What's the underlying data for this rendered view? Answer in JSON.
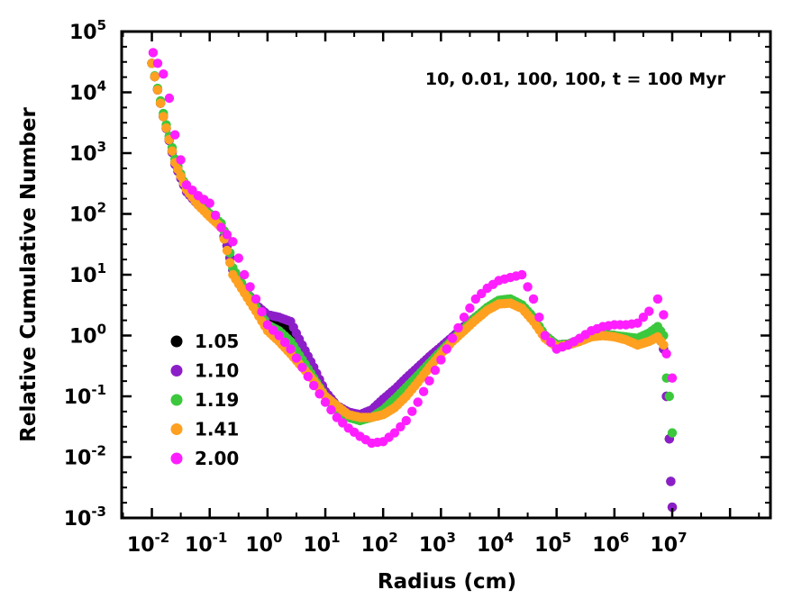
{
  "chart_data": {
    "type": "scatter",
    "title": "",
    "annotation": "10, 0.01, 100, 100, t = 100 Myr",
    "xlabel": "Radius (cm)",
    "ylabel": "Relative Cumulative Number",
    "xscale": "log",
    "yscale": "log",
    "xlim": [
      0.003,
      500000000
    ],
    "ylim": [
      0.001,
      100000
    ],
    "x_ticks": [
      {
        "base": "10",
        "exp": "-2",
        "value": 0.01
      },
      {
        "base": "10",
        "exp": "-1",
        "value": 0.1
      },
      {
        "base": "10",
        "exp": "0",
        "value": 1
      },
      {
        "base": "10",
        "exp": "1",
        "value": 10
      },
      {
        "base": "10",
        "exp": "2",
        "value": 100
      },
      {
        "base": "10",
        "exp": "3",
        "value": 1000
      },
      {
        "base": "10",
        "exp": "4",
        "value": 10000
      },
      {
        "base": "10",
        "exp": "5",
        "value": 100000
      },
      {
        "base": "10",
        "exp": "6",
        "value": 1000000
      },
      {
        "base": "10",
        "exp": "7",
        "value": 10000000
      }
    ],
    "y_ticks": [
      {
        "base": "10",
        "exp": "-3",
        "value": 0.001
      },
      {
        "base": "10",
        "exp": "-2",
        "value": 0.01
      },
      {
        "base": "10",
        "exp": "-1",
        "value": 0.1
      },
      {
        "base": "10",
        "exp": "0",
        "value": 1
      },
      {
        "base": "10",
        "exp": "1",
        "value": 10
      },
      {
        "base": "10",
        "exp": "2",
        "value": 100
      },
      {
        "base": "10",
        "exp": "3",
        "value": 1000
      },
      {
        "base": "10",
        "exp": "4",
        "value": 10000
      },
      {
        "base": "10",
        "exp": "5",
        "value": 100000
      }
    ],
    "legend_position": "lower-left",
    "series": [
      {
        "name": "1.05",
        "color": "#000000",
        "points": [
          [
            0.01,
            30000
          ],
          [
            0.0158,
            4000
          ],
          [
            0.0251,
            700
          ],
          [
            0.0398,
            250
          ],
          [
            0.0631,
            150
          ],
          [
            0.1,
            100
          ],
          [
            0.158,
            60
          ],
          [
            0.2,
            30
          ],
          [
            0.251,
            12
          ],
          [
            0.398,
            6
          ],
          [
            0.631,
            3
          ],
          [
            1,
            1.8
          ],
          [
            1.58,
            1.6
          ],
          [
            2.51,
            1.1
          ],
          [
            3.98,
            0.5
          ],
          [
            6.31,
            0.25
          ],
          [
            10,
            0.12
          ],
          [
            15.8,
            0.07
          ],
          [
            25.1,
            0.055
          ],
          [
            39.8,
            0.045
          ],
          [
            63.1,
            0.055
          ],
          [
            100,
            0.08
          ],
          [
            158,
            0.11
          ],
          [
            251,
            0.17
          ],
          [
            398,
            0.27
          ],
          [
            631,
            0.4
          ],
          [
            1000,
            0.6
          ],
          [
            1580,
            0.9
          ],
          [
            2510,
            1.4
          ],
          [
            3980,
            2
          ],
          [
            6310,
            2.8
          ],
          [
            10000,
            3.5
          ],
          [
            15800,
            3.7
          ],
          [
            25100,
            3
          ],
          [
            39800,
            1.8
          ],
          [
            63100,
            1
          ],
          [
            100000,
            0.7
          ],
          [
            158000,
            0.72
          ],
          [
            251000,
            0.85
          ],
          [
            398000,
            1
          ],
          [
            631000,
            1.05
          ],
          [
            1000000,
            1
          ],
          [
            1580000,
            0.9
          ],
          [
            2510000,
            0.85
          ],
          [
            3980000,
            1
          ],
          [
            5620000,
            1.1
          ],
          [
            7080000,
            0.6
          ],
          [
            7940000,
            0.1
          ],
          [
            8910000,
            0.02
          ],
          [
            9440000,
            0.004
          ],
          [
            10000000,
            0.0015
          ]
        ]
      },
      {
        "name": "1.10",
        "color": "#8c1ec8",
        "points": [
          [
            0.01,
            30000
          ],
          [
            0.0158,
            4000
          ],
          [
            0.0251,
            650
          ],
          [
            0.0398,
            230
          ],
          [
            0.0631,
            140
          ],
          [
            0.1,
            100
          ],
          [
            0.158,
            60
          ],
          [
            0.2,
            30
          ],
          [
            0.251,
            12
          ],
          [
            0.398,
            6
          ],
          [
            0.631,
            3.2
          ],
          [
            1,
            2.2
          ],
          [
            1.58,
            2
          ],
          [
            2.51,
            1.7
          ],
          [
            3.98,
            0.7
          ],
          [
            6.31,
            0.3
          ],
          [
            10,
            0.12
          ],
          [
            15.8,
            0.07
          ],
          [
            25.1,
            0.055
          ],
          [
            39.8,
            0.05
          ],
          [
            63.1,
            0.06
          ],
          [
            100,
            0.09
          ],
          [
            158,
            0.13
          ],
          [
            251,
            0.2
          ],
          [
            398,
            0.3
          ],
          [
            631,
            0.45
          ],
          [
            1000,
            0.65
          ],
          [
            1580,
            0.95
          ],
          [
            2510,
            1.4
          ],
          [
            3980,
            2
          ],
          [
            6310,
            2.8
          ],
          [
            10000,
            3.5
          ],
          [
            15800,
            3.6
          ],
          [
            25100,
            3
          ],
          [
            39800,
            1.8
          ],
          [
            63100,
            1
          ],
          [
            100000,
            0.7
          ],
          [
            158000,
            0.72
          ],
          [
            251000,
            0.85
          ],
          [
            398000,
            1
          ],
          [
            631000,
            1.05
          ],
          [
            1000000,
            1
          ],
          [
            1580000,
            0.9
          ],
          [
            2510000,
            0.85
          ],
          [
            3980000,
            1
          ],
          [
            5620000,
            1.2
          ],
          [
            7080000,
            0.6
          ],
          [
            7940000,
            0.1
          ],
          [
            8910000,
            0.02
          ],
          [
            9440000,
            0.004
          ],
          [
            10000000,
            0.0015
          ]
        ]
      },
      {
        "name": "1.19",
        "color": "#3cc83c",
        "points": [
          [
            0.01,
            30000
          ],
          [
            0.0158,
            4500
          ],
          [
            0.0251,
            800
          ],
          [
            0.0398,
            260
          ],
          [
            0.0631,
            150
          ],
          [
            0.1,
            100
          ],
          [
            0.158,
            70
          ],
          [
            0.2,
            40
          ],
          [
            0.251,
            13
          ],
          [
            0.398,
            6
          ],
          [
            0.631,
            3
          ],
          [
            1,
            1.5
          ],
          [
            1.58,
            1.2
          ],
          [
            2.51,
            0.8
          ],
          [
            3.98,
            0.4
          ],
          [
            6.31,
            0.2
          ],
          [
            10,
            0.1
          ],
          [
            15.8,
            0.06
          ],
          [
            25.1,
            0.045
          ],
          [
            39.8,
            0.04
          ],
          [
            63.1,
            0.045
          ],
          [
            100,
            0.06
          ],
          [
            158,
            0.09
          ],
          [
            251,
            0.14
          ],
          [
            398,
            0.22
          ],
          [
            631,
            0.35
          ],
          [
            1000,
            0.55
          ],
          [
            1580,
            0.85
          ],
          [
            2510,
            1.3
          ],
          [
            3980,
            2
          ],
          [
            6310,
            2.9
          ],
          [
            10000,
            3.8
          ],
          [
            15800,
            4
          ],
          [
            25100,
            3.2
          ],
          [
            39800,
            2
          ],
          [
            63100,
            1
          ],
          [
            100000,
            0.7
          ],
          [
            158000,
            0.72
          ],
          [
            251000,
            0.85
          ],
          [
            398000,
            1
          ],
          [
            631000,
            1.05
          ],
          [
            1000000,
            1
          ],
          [
            1580000,
            0.95
          ],
          [
            2510000,
            0.9
          ],
          [
            3980000,
            1.1
          ],
          [
            5620000,
            1.4
          ],
          [
            7080000,
            1
          ],
          [
            7940000,
            0.2
          ],
          [
            8910000,
            0.1
          ],
          [
            10000000,
            0.025
          ]
        ]
      },
      {
        "name": "1.41",
        "color": "#ffa020",
        "points": [
          [
            0.01,
            30000
          ],
          [
            0.0158,
            4000
          ],
          [
            0.0251,
            700
          ],
          [
            0.0398,
            250
          ],
          [
            0.0631,
            140
          ],
          [
            0.1,
            90
          ],
          [
            0.158,
            60
          ],
          [
            0.2,
            25
          ],
          [
            0.251,
            10
          ],
          [
            0.398,
            5
          ],
          [
            0.631,
            2.5
          ],
          [
            1,
            1.2
          ],
          [
            1.58,
            0.8
          ],
          [
            2.51,
            0.5
          ],
          [
            3.98,
            0.3
          ],
          [
            6.31,
            0.18
          ],
          [
            10,
            0.1
          ],
          [
            15.8,
            0.07
          ],
          [
            25.1,
            0.05
          ],
          [
            39.8,
            0.045
          ],
          [
            63.1,
            0.045
          ],
          [
            100,
            0.05
          ],
          [
            158,
            0.065
          ],
          [
            251,
            0.1
          ],
          [
            398,
            0.17
          ],
          [
            631,
            0.3
          ],
          [
            1000,
            0.5
          ],
          [
            1580,
            0.8
          ],
          [
            2510,
            1.2
          ],
          [
            3980,
            1.8
          ],
          [
            6310,
            2.6
          ],
          [
            10000,
            3.3
          ],
          [
            15800,
            3.4
          ],
          [
            25100,
            2.8
          ],
          [
            39800,
            1.7
          ],
          [
            63100,
            0.9
          ],
          [
            100000,
            0.65
          ],
          [
            158000,
            0.7
          ],
          [
            251000,
            0.8
          ],
          [
            398000,
            0.95
          ],
          [
            631000,
            1
          ],
          [
            1000000,
            0.95
          ],
          [
            1580000,
            0.85
          ],
          [
            2510000,
            0.7
          ],
          [
            3980000,
            0.8
          ],
          [
            5620000,
            0.95
          ],
          [
            7080000,
            0.7
          ]
        ]
      },
      {
        "name": "2.00",
        "color": "#ff1eff",
        "points": [
          [
            0.0105,
            45000
          ],
          [
            0.0126,
            30000
          ],
          [
            0.0158,
            20000
          ],
          [
            0.02,
            8000
          ],
          [
            0.0251,
            2000
          ],
          [
            0.0398,
            300
          ],
          [
            0.0631,
            200
          ],
          [
            0.1,
            150
          ],
          [
            0.158,
            60
          ],
          [
            0.251,
            35
          ],
          [
            0.398,
            10
          ],
          [
            0.631,
            4
          ],
          [
            1,
            1.5
          ],
          [
            1.58,
            1
          ],
          [
            2.51,
            0.6
          ],
          [
            3.98,
            0.3
          ],
          [
            6.31,
            0.15
          ],
          [
            10,
            0.08
          ],
          [
            15.8,
            0.045
          ],
          [
            25.1,
            0.03
          ],
          [
            39.8,
            0.022
          ],
          [
            63.1,
            0.017
          ],
          [
            100,
            0.018
          ],
          [
            158,
            0.025
          ],
          [
            251,
            0.04
          ],
          [
            398,
            0.08
          ],
          [
            631,
            0.18
          ],
          [
            1000,
            0.4
          ],
          [
            1580,
            0.9
          ],
          [
            2510,
            2
          ],
          [
            3980,
            4
          ],
          [
            6310,
            6
          ],
          [
            10000,
            8
          ],
          [
            15800,
            9
          ],
          [
            25100,
            10
          ],
          [
            39800,
            4
          ],
          [
            63100,
            1
          ],
          [
            100000,
            0.6
          ],
          [
            158000,
            0.7
          ],
          [
            251000,
            0.9
          ],
          [
            398000,
            1.2
          ],
          [
            631000,
            1.4
          ],
          [
            1000000,
            1.5
          ],
          [
            1580000,
            1.5
          ],
          [
            2510000,
            1.6
          ],
          [
            3980000,
            2.5
          ],
          [
            5620000,
            4
          ],
          [
            7080000,
            2.2
          ],
          [
            7940000,
            0.5
          ],
          [
            10000000,
            0.2
          ]
        ]
      }
    ]
  }
}
